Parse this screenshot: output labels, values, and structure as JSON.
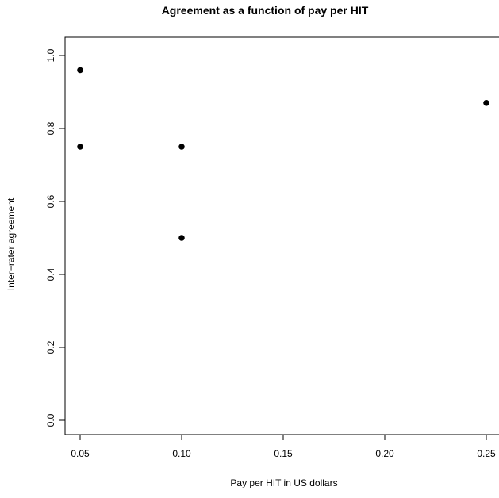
{
  "chart_data": {
    "type": "scatter",
    "title": "Agreement as a function of pay per HIT",
    "xlabel": "Pay per HIT in US dollars",
    "ylabel": "Inter−rater agreement",
    "xlim": [
      0.05,
      0.25
    ],
    "ylim": [
      0.0,
      1.0
    ],
    "x_ticks": [
      0.05,
      0.1,
      0.15,
      0.2,
      0.25
    ],
    "x_tick_labels": [
      "0.05",
      "0.10",
      "0.15",
      "0.20",
      "0.25"
    ],
    "y_ticks": [
      0.0,
      0.2,
      0.4,
      0.6,
      0.8,
      1.0
    ],
    "y_tick_labels": [
      "0.0",
      "0.2",
      "0.4",
      "0.6",
      "0.8",
      "1.0"
    ],
    "grid": false,
    "legend": "none",
    "point_color": "#000000",
    "points": [
      {
        "x": 0.05,
        "y": 0.96
      },
      {
        "x": 0.05,
        "y": 0.75
      },
      {
        "x": 0.1,
        "y": 0.75
      },
      {
        "x": 0.1,
        "y": 0.5
      },
      {
        "x": 0.25,
        "y": 0.87
      }
    ]
  }
}
